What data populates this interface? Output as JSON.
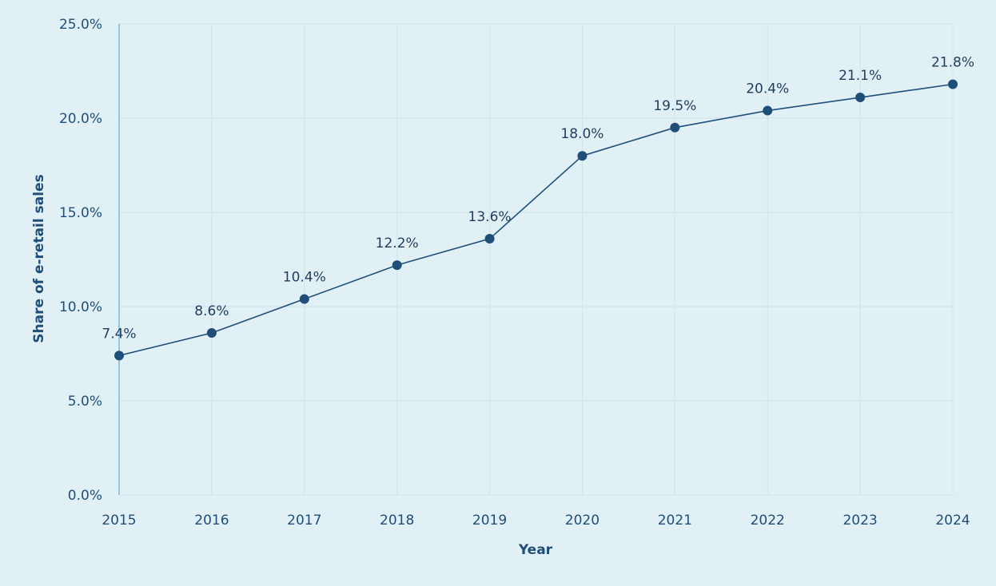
{
  "colors": {
    "background": "#e1f0f5",
    "gridline": "#cfe3ea",
    "y_axis_line": "#7fb7d4",
    "series_line": "#1f4e79",
    "marker": "#1f4e79",
    "text": "#1f4e79"
  },
  "chart_data": {
    "type": "line",
    "title": "",
    "xlabel": "Year",
    "ylabel": "Share of e-retail sales",
    "x": [
      "2015",
      "2016",
      "2017",
      "2018",
      "2019",
      "2020",
      "2021",
      "2022",
      "2023",
      "2024"
    ],
    "series": [
      {
        "values": [
          7.4,
          8.6,
          10.4,
          12.2,
          13.6,
          18.0,
          19.5,
          20.4,
          21.1,
          21.8
        ],
        "data_labels": [
          "7.4%",
          "8.6%",
          "10.4%",
          "12.2%",
          "13.6%",
          "18.0%",
          "19.5%",
          "20.4%",
          "21.1%",
          "21.8%"
        ]
      }
    ],
    "ylim": [
      0,
      25
    ],
    "yticks": [
      0,
      5,
      10,
      15,
      20,
      25
    ],
    "ytick_labels": [
      "0.0%",
      "5.0%",
      "10.0%",
      "15.0%",
      "20.0%",
      "25.0%"
    ],
    "grid": true,
    "legend": "none",
    "markers": true
  }
}
